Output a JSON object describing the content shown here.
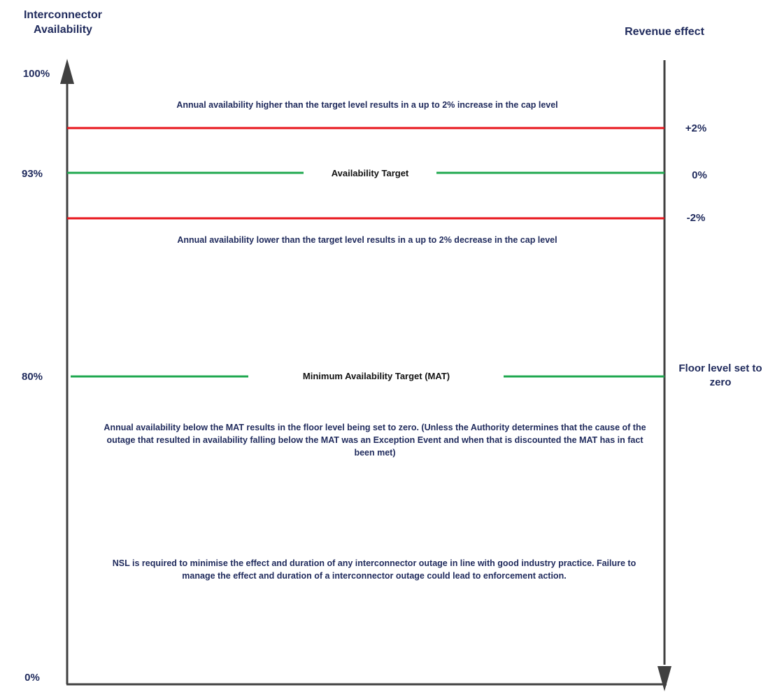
{
  "left_axis": {
    "title_line1": "Interconnector",
    "title_line2": "Availability",
    "ticks": {
      "top": "100%",
      "target": "93%",
      "mat": "80%",
      "bottom": "0%"
    }
  },
  "right_axis": {
    "title": "Revenue effect",
    "ticks": {
      "plus": "+2%",
      "zero": "0%",
      "minus": "-2%",
      "floor_line1": "Floor level set to",
      "floor_line2": "zero"
    }
  },
  "lines": {
    "availability_target": "Availability Target",
    "mat": "Minimum Availability Target (MAT)"
  },
  "notes": {
    "above_target": "Annual availability higher than the target level results in a up to 2% increase in the cap level",
    "below_target": "Annual availability lower than the target level results in a up to 2% decrease in the cap level",
    "below_mat": "Annual availability below the MAT results in the floor level being set to zero. (Unless the Authority determines that the cause of the outage that resulted in availability falling below the MAT was an Exception Event and when that is discounted the MAT has in fact been met)",
    "enforcement": "NSL is required to minimise the effect and duration of any interconnector outage in line with good industry practice. Failure to manage the effect and duration of a interconnector outage could lead to enforcement action."
  },
  "colors": {
    "axis": "#404040",
    "text": "#1f2a5c",
    "red_line": "#e8141b",
    "green_line": "#1fa84f"
  }
}
